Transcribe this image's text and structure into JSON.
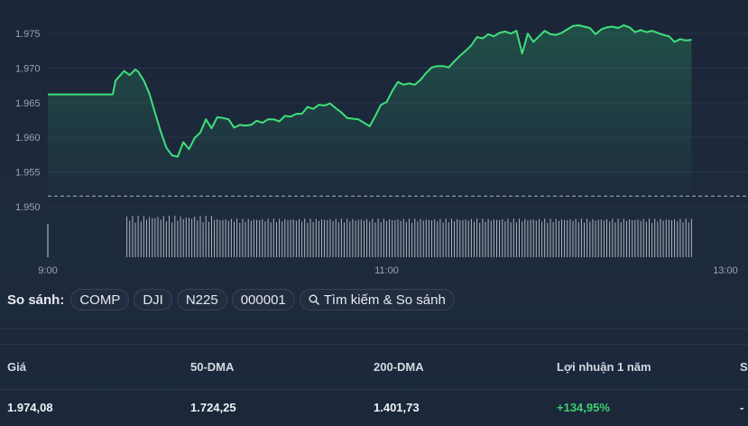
{
  "chart_data": {
    "type": "area",
    "y_ticks": [
      "1.975",
      "1.970",
      "1.965",
      "1.960",
      "1.955",
      "1.950"
    ],
    "y_tick_values": [
      1975,
      1970,
      1965,
      1960,
      1955,
      1950
    ],
    "ylim": [
      1947.5,
      1977.5
    ],
    "x_ticks": [
      "9:00",
      "11:00",
      "13:00"
    ],
    "x_tick_minutes": [
      540,
      660,
      780
    ],
    "xlim": [
      540,
      788
    ],
    "previous_close": 1951.5,
    "grid": true,
    "colors": {
      "line": "#3ee07a",
      "fill": "#2a9c63",
      "grid": "#2d374a",
      "tick_label": "#9aa3b2",
      "volume": "#c7ccd4",
      "previous_close": "#9aa3b2"
    },
    "series": [
      {
        "x": [
          540,
          548,
          556,
          563,
          564,
          567,
          569,
          571,
          572,
          574,
          576,
          578,
          580,
          582,
          584,
          586,
          588,
          590,
          592,
          594,
          596,
          598,
          600,
          602,
          604,
          606,
          608,
          610,
          612,
          614,
          616,
          618,
          620,
          622,
          624,
          626,
          628,
          630,
          632,
          634,
          636,
          638,
          640,
          642,
          644,
          646,
          648,
          650,
          652,
          654,
          656,
          658,
          660,
          662,
          664,
          666,
          668,
          670,
          672,
          674,
          676,
          678,
          680,
          682,
          684,
          686,
          688,
          690,
          692,
          694,
          696,
          698,
          700,
          702,
          704,
          706,
          708,
          710,
          712,
          714,
          716,
          718,
          720,
          722,
          724,
          726,
          728,
          730,
          732,
          734,
          736,
          738,
          740,
          742,
          744,
          746,
          748,
          750,
          752,
          754,
          756,
          758,
          760,
          762,
          764,
          766,
          768
        ],
        "y": [
          1966.2,
          1966.2,
          1966.2,
          1966.2,
          1968.2,
          1969.6,
          1969.0,
          1969.8,
          1969.5,
          1968.2,
          1966.3,
          1963.5,
          1960.8,
          1958.5,
          1957.4,
          1957.2,
          1959.3,
          1958.3,
          1959.9,
          1960.7,
          1962.6,
          1961.3,
          1962.9,
          1962.8,
          1962.6,
          1961.4,
          1961.8,
          1961.7,
          1961.8,
          1962.4,
          1962.1,
          1962.6,
          1962.6,
          1962.3,
          1963.1,
          1963.0,
          1963.4,
          1963.4,
          1964.4,
          1964.1,
          1964.7,
          1964.6,
          1964.9,
          1964.2,
          1963.6,
          1962.8,
          1962.7,
          1962.6,
          1962.1,
          1961.6,
          1963.1,
          1964.7,
          1965.1,
          1966.7,
          1968.0,
          1967.6,
          1967.8,
          1967.6,
          1968.3,
          1969.3,
          1970.1,
          1970.3,
          1970.3,
          1970.1,
          1971.0,
          1971.8,
          1972.5,
          1973.3,
          1974.5,
          1974.3,
          1974.9,
          1974.6,
          1975.1,
          1975.3,
          1975.0,
          1975.4,
          1972.1,
          1975.0,
          1973.8,
          1974.6,
          1975.4,
          1974.9,
          1974.8,
          1975.1,
          1975.6,
          1976.1,
          1976.2,
          1976.0,
          1975.8,
          1974.9,
          1975.6,
          1975.9,
          1976.0,
          1975.8,
          1976.2,
          1975.9,
          1975.2,
          1975.5,
          1975.2,
          1975.4,
          1975.1,
          1974.8,
          1974.6,
          1973.8,
          1974.2,
          1974.0,
          1974.1
        ]
      }
    ],
    "volume_x_range": [
      568,
      768
    ]
  },
  "compare": {
    "label": "So sánh:",
    "chips": [
      "COMP",
      "DJI",
      "N225",
      "000001"
    ],
    "search_label": "Tìm kiếm & So sánh",
    "search_icon": "search-icon"
  },
  "stats": {
    "headers": [
      "Giá",
      "50-DMA",
      "200-DMA",
      "Lợi nhuận 1 năm",
      "S"
    ],
    "values": [
      "1.974,08",
      "1.724,25",
      "1.401,73",
      "+134,95%",
      "-"
    ],
    "positive_color": "#3ecf6e"
  }
}
